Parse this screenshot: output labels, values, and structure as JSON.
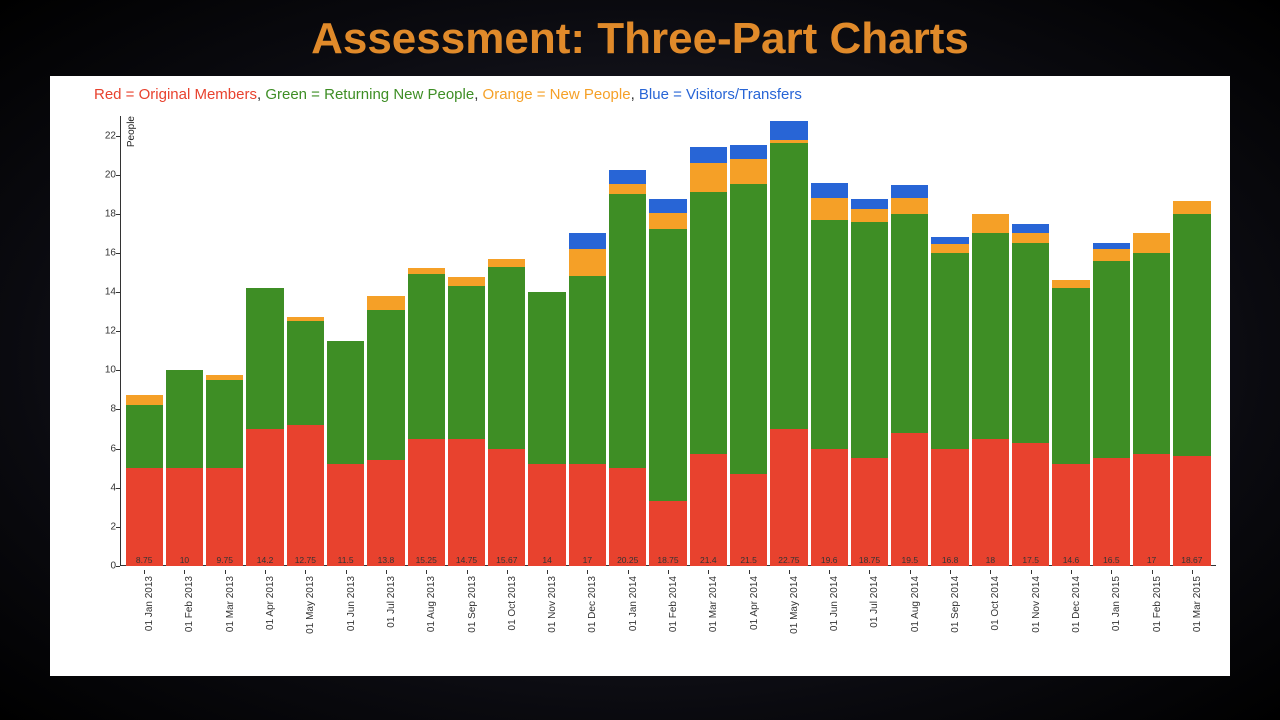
{
  "slide": {
    "title": "Assessment: Three-Part Charts",
    "title_color": "#e08a2a",
    "background_gradient": [
      "#2a2a3a",
      "#0a0a0f",
      "#000000"
    ]
  },
  "chart": {
    "type": "stacked-bar",
    "background_color": "#ffffff",
    "legend": [
      {
        "label": "Red = Original Members",
        "color": "#e8422e"
      },
      {
        "label": "Green = Returning New People",
        "color": "#3e8e25"
      },
      {
        "label": "Orange = New People",
        "color": "#f5a027"
      },
      {
        "label": "Blue = Visitors/Transfers",
        "color": "#2865d6"
      }
    ],
    "legend_separator": ", ",
    "legend_fontsize": 15,
    "y_axis": {
      "label": "People",
      "min": 0,
      "max": 23,
      "ticks": [
        0,
        2,
        4,
        6,
        8,
        10,
        12,
        14,
        16,
        18,
        20,
        22
      ],
      "tick_fontsize": 10,
      "label_fontsize": 10
    },
    "x_axis": {
      "tick_fontsize": 10,
      "rotation": -90
    },
    "series_colors": {
      "original": "#e8422e",
      "returning": "#3e8e25",
      "new": "#f5a027",
      "visitors": "#2865d6"
    },
    "bar_total_label_fontsize": 8.5,
    "bar_total_label_color": "#333333",
    "data": [
      {
        "x": "01 Jan 2013",
        "total": 8.75,
        "original": 5.0,
        "returning": 3.25,
        "new": 0.5,
        "visitors": 0.0
      },
      {
        "x": "01 Feb 2013",
        "total": 10,
        "original": 5.0,
        "returning": 5.0,
        "new": 0.0,
        "visitors": 0.0
      },
      {
        "x": "01 Mar 2013",
        "total": 9.75,
        "original": 5.0,
        "returning": 4.5,
        "new": 0.25,
        "visitors": 0.0
      },
      {
        "x": "01 Apr 2013",
        "total": 14.2,
        "original": 7.0,
        "returning": 7.2,
        "new": 0.0,
        "visitors": 0.0
      },
      {
        "x": "01 May 2013",
        "total": 12.75,
        "original": 7.2,
        "returning": 5.3,
        "new": 0.25,
        "visitors": 0.0
      },
      {
        "x": "01 Jun 2013",
        "total": 11.5,
        "original": 5.2,
        "returning": 6.3,
        "new": 0.0,
        "visitors": 0.0
      },
      {
        "x": "01 Jul 2013",
        "total": 13.8,
        "original": 5.4,
        "returning": 7.7,
        "new": 0.7,
        "visitors": 0.0
      },
      {
        "x": "01 Aug 2013",
        "total": 15.25,
        "original": 6.5,
        "returning": 8.4,
        "new": 0.35,
        "visitors": 0.0
      },
      {
        "x": "01 Sep 2013",
        "total": 14.75,
        "original": 6.5,
        "returning": 7.8,
        "new": 0.45,
        "visitors": 0.0
      },
      {
        "x": "01 Oct 2013",
        "total": 15.67,
        "original": 6.0,
        "returning": 9.3,
        "new": 0.37,
        "visitors": 0.0
      },
      {
        "x": "01 Nov 2013",
        "total": 14,
        "original": 5.2,
        "returning": 8.8,
        "new": 0.0,
        "visitors": 0.0
      },
      {
        "x": "01 Dec 2013",
        "total": 17,
        "original": 5.2,
        "returning": 9.6,
        "new": 1.4,
        "visitors": 0.8
      },
      {
        "x": "01 Jan 2014",
        "total": 20.25,
        "original": 5.0,
        "returning": 14.0,
        "new": 0.55,
        "visitors": 0.7
      },
      {
        "x": "01 Feb 2014",
        "total": 18.75,
        "original": 3.3,
        "returning": 13.9,
        "new": 0.85,
        "visitors": 0.7
      },
      {
        "x": "01 Mar 2014",
        "total": 21.4,
        "original": 5.7,
        "returning": 13.4,
        "new": 1.5,
        "visitors": 0.8
      },
      {
        "x": "01 Apr 2014",
        "total": 21.5,
        "original": 4.7,
        "returning": 14.8,
        "new": 1.3,
        "visitors": 0.7
      },
      {
        "x": "01 May 2014",
        "total": 22.75,
        "original": 7.0,
        "returning": 14.6,
        "new": 0.15,
        "visitors": 1.0
      },
      {
        "x": "01 Jun 2014",
        "total": 19.6,
        "original": 6.0,
        "returning": 11.7,
        "new": 1.1,
        "visitors": 0.8
      },
      {
        "x": "01 Jul 2014",
        "total": 18.75,
        "original": 5.5,
        "returning": 12.1,
        "new": 0.65,
        "visitors": 0.5
      },
      {
        "x": "01 Aug 2014",
        "total": 19.5,
        "original": 6.8,
        "returning": 11.2,
        "new": 0.8,
        "visitors": 0.7
      },
      {
        "x": "01 Sep 2014",
        "total": 16.8,
        "original": 6.0,
        "returning": 10.0,
        "new": 0.45,
        "visitors": 0.35
      },
      {
        "x": "01 Oct 2014",
        "total": 18,
        "original": 6.5,
        "returning": 10.5,
        "new": 1.0,
        "visitors": 0.0
      },
      {
        "x": "01 Nov 2014",
        "total": 17.5,
        "original": 6.3,
        "returning": 10.2,
        "new": 0.5,
        "visitors": 0.5
      },
      {
        "x": "01 Dec 2014",
        "total": 14.6,
        "original": 5.2,
        "returning": 9.0,
        "new": 0.4,
        "visitors": 0.0
      },
      {
        "x": "01 Jan 2015",
        "total": 16.5,
        "original": 5.5,
        "returning": 10.1,
        "new": 0.6,
        "visitors": 0.3
      },
      {
        "x": "01 Feb 2015",
        "total": 17,
        "original": 5.7,
        "returning": 10.3,
        "new": 1.0,
        "visitors": 0.0
      },
      {
        "x": "01 Mar 2015",
        "total": 18.67,
        "original": 5.6,
        "returning": 12.4,
        "new": 0.67,
        "visitors": 0.0
      }
    ]
  }
}
